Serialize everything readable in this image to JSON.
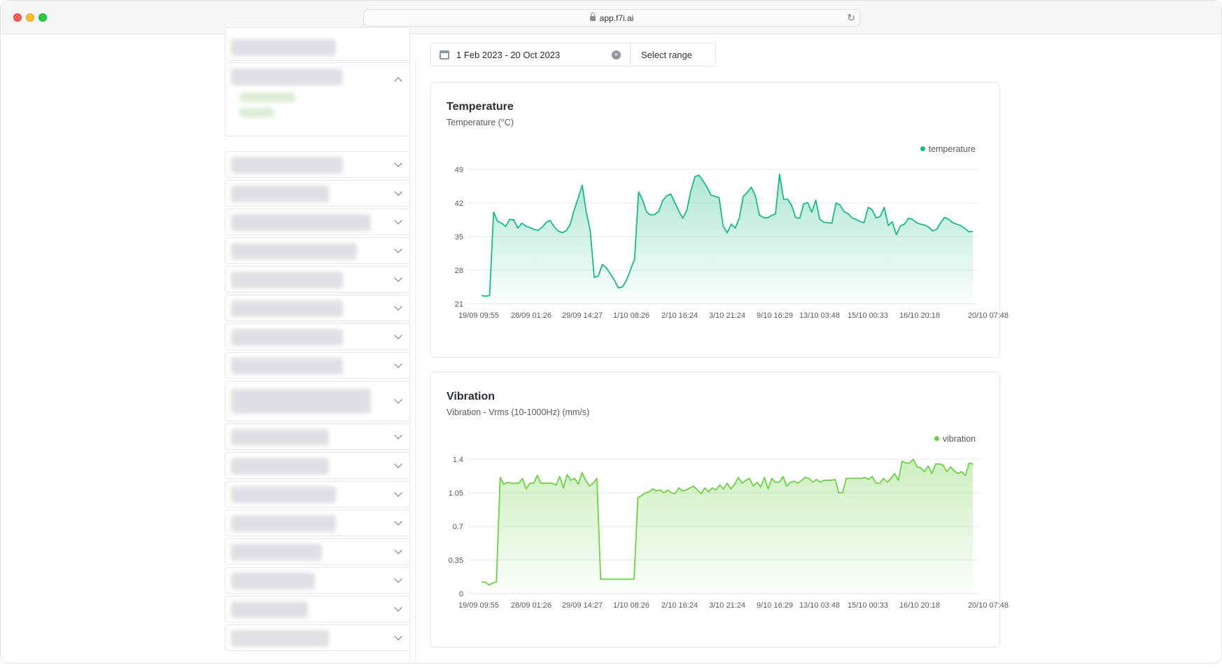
{
  "browser": {
    "url": "app.f7i.ai"
  },
  "date_range": {
    "value": "1 Feb 2023 - 20 Oct 2023",
    "select_label": "Select range"
  },
  "colors": {
    "temperature": "#1bb88a",
    "vibration": "#6fcf4a"
  },
  "x_tick_labels": [
    "19/09 09:55",
    "28/09 01:26",
    "29/09 14:27",
    "1/10 08:26",
    "2/10 16:24",
    "3/10 21:24",
    "9/10 16:29",
    "13/10 03:48",
    "15/10 00:33",
    "16/10 20:18",
    "20/10 07:48"
  ],
  "chart_data": [
    {
      "type": "area",
      "title": "Temperature",
      "subtitle": "Temperature (°C)",
      "legend": "temperature",
      "legend_position": "top-right",
      "ylim": [
        21,
        49
      ],
      "yticks": [
        "49",
        "42",
        "35",
        "28",
        "21"
      ],
      "x_ticks": [
        "19/09 09:55",
        "28/09 01:26",
        "29/09 14:27",
        "1/10 08:26",
        "2/10 16:24",
        "3/10 21:24",
        "9/10 16:29",
        "13/10 03:48",
        "15/10 00:33",
        "16/10 20:18",
        "20/10 07:48"
      ],
      "values": [
        22.7,
        22.6,
        22.7,
        40.1,
        38.2,
        37.8,
        37.1,
        38.6,
        38.5,
        36.8,
        37.8,
        37.2,
        36.9,
        36.5,
        36.3,
        36.9,
        37.9,
        38.4,
        37.1,
        36.2,
        35.8,
        36.2,
        37.5,
        40.5,
        43.0,
        45.7,
        40.1,
        36.2,
        26.5,
        26.8,
        29.2,
        28.5,
        27.2,
        25.9,
        24.3,
        24.5,
        25.9,
        28.1,
        30.3,
        44.3,
        42.6,
        40.1,
        39.5,
        39.6,
        40.3,
        42.5,
        43.5,
        43.9,
        42.1,
        40.3,
        38.8,
        40.6,
        44.6,
        47.5,
        47.8,
        46.6,
        45.3,
        43.6,
        43.4,
        43.1,
        37.2,
        35.8,
        37.6,
        36.8,
        38.9,
        43.4,
        44.2,
        45.3,
        43.5,
        39.5,
        39.0,
        38.9,
        39.4,
        39.7,
        48.0,
        42.8,
        42.8,
        41.5,
        39.0,
        38.8,
        41.8,
        42.1,
        40.1,
        42.6,
        38.6,
        38.0,
        37.9,
        37.8,
        42.0,
        41.6,
        40.2,
        39.8,
        38.9,
        38.6,
        38.1,
        37.9,
        41.1,
        40.6,
        38.9,
        39.2,
        41.1,
        37.3,
        38.1,
        35.4,
        37.2,
        37.6,
        38.8,
        38.6,
        37.9,
        37.6,
        37.4,
        37.0,
        36.2,
        36.5,
        37.9,
        39.0,
        38.6,
        37.9,
        37.6,
        37.3,
        36.7,
        36.0,
        36.1
      ]
    },
    {
      "type": "area",
      "title": "Vibration",
      "subtitle": "Vibration - Vrms (10-1000Hz) (mm/s)",
      "legend": "vibration",
      "legend_position": "top-right",
      "ylim": [
        0,
        1.4
      ],
      "yticks": [
        "1.4",
        "1.05",
        "0.7",
        "0.35",
        "0"
      ],
      "x_ticks": [
        "19/09 09:55",
        "28/09 01:26",
        "29/09 14:27",
        "1/10 08:26",
        "2/10 16:24",
        "3/10 21:24",
        "9/10 16:29",
        "13/10 03:48",
        "15/10 00:33",
        "16/10 20:18",
        "20/10 07:48"
      ],
      "values": [
        0.12,
        0.12,
        0.09,
        0.11,
        0.12,
        1.21,
        1.14,
        1.16,
        1.15,
        1.15,
        1.15,
        1.2,
        1.09,
        1.15,
        1.15,
        1.23,
        1.15,
        1.15,
        1.15,
        1.15,
        1.13,
        1.22,
        1.1,
        1.24,
        1.18,
        1.2,
        1.14,
        1.26,
        1.18,
        1.12,
        1.15,
        1.2,
        0.15,
        0.15,
        0.15,
        0.15,
        0.15,
        0.15,
        0.15,
        0.15,
        0.15,
        0.15,
        1.0,
        1.02,
        1.05,
        1.06,
        1.09,
        1.07,
        1.08,
        1.05,
        1.08,
        1.05,
        1.04,
        1.1,
        1.07,
        1.08,
        1.1,
        1.12,
        1.08,
        1.04,
        1.1,
        1.06,
        1.1,
        1.08,
        1.13,
        1.09,
        1.15,
        1.09,
        1.14,
        1.21,
        1.15,
        1.18,
        1.2,
        1.12,
        1.16,
        1.11,
        1.21,
        1.09,
        1.2,
        1.16,
        1.16,
        1.22,
        1.12,
        1.16,
        1.17,
        1.15,
        1.18,
        1.21,
        1.2,
        1.16,
        1.19,
        1.16,
        1.18,
        1.18,
        1.18,
        1.19,
        1.05,
        1.05,
        1.2,
        1.2,
        1.2,
        1.2,
        1.2,
        1.21,
        1.19,
        1.22,
        1.15,
        1.15,
        1.2,
        1.16,
        1.2,
        1.25,
        1.18,
        1.38,
        1.36,
        1.36,
        1.4,
        1.32,
        1.31,
        1.27,
        1.33,
        1.25,
        1.35,
        1.35,
        1.34,
        1.27,
        1.32,
        1.28,
        1.25,
        1.27,
        1.23,
        1.36,
        1.35
      ]
    }
  ]
}
